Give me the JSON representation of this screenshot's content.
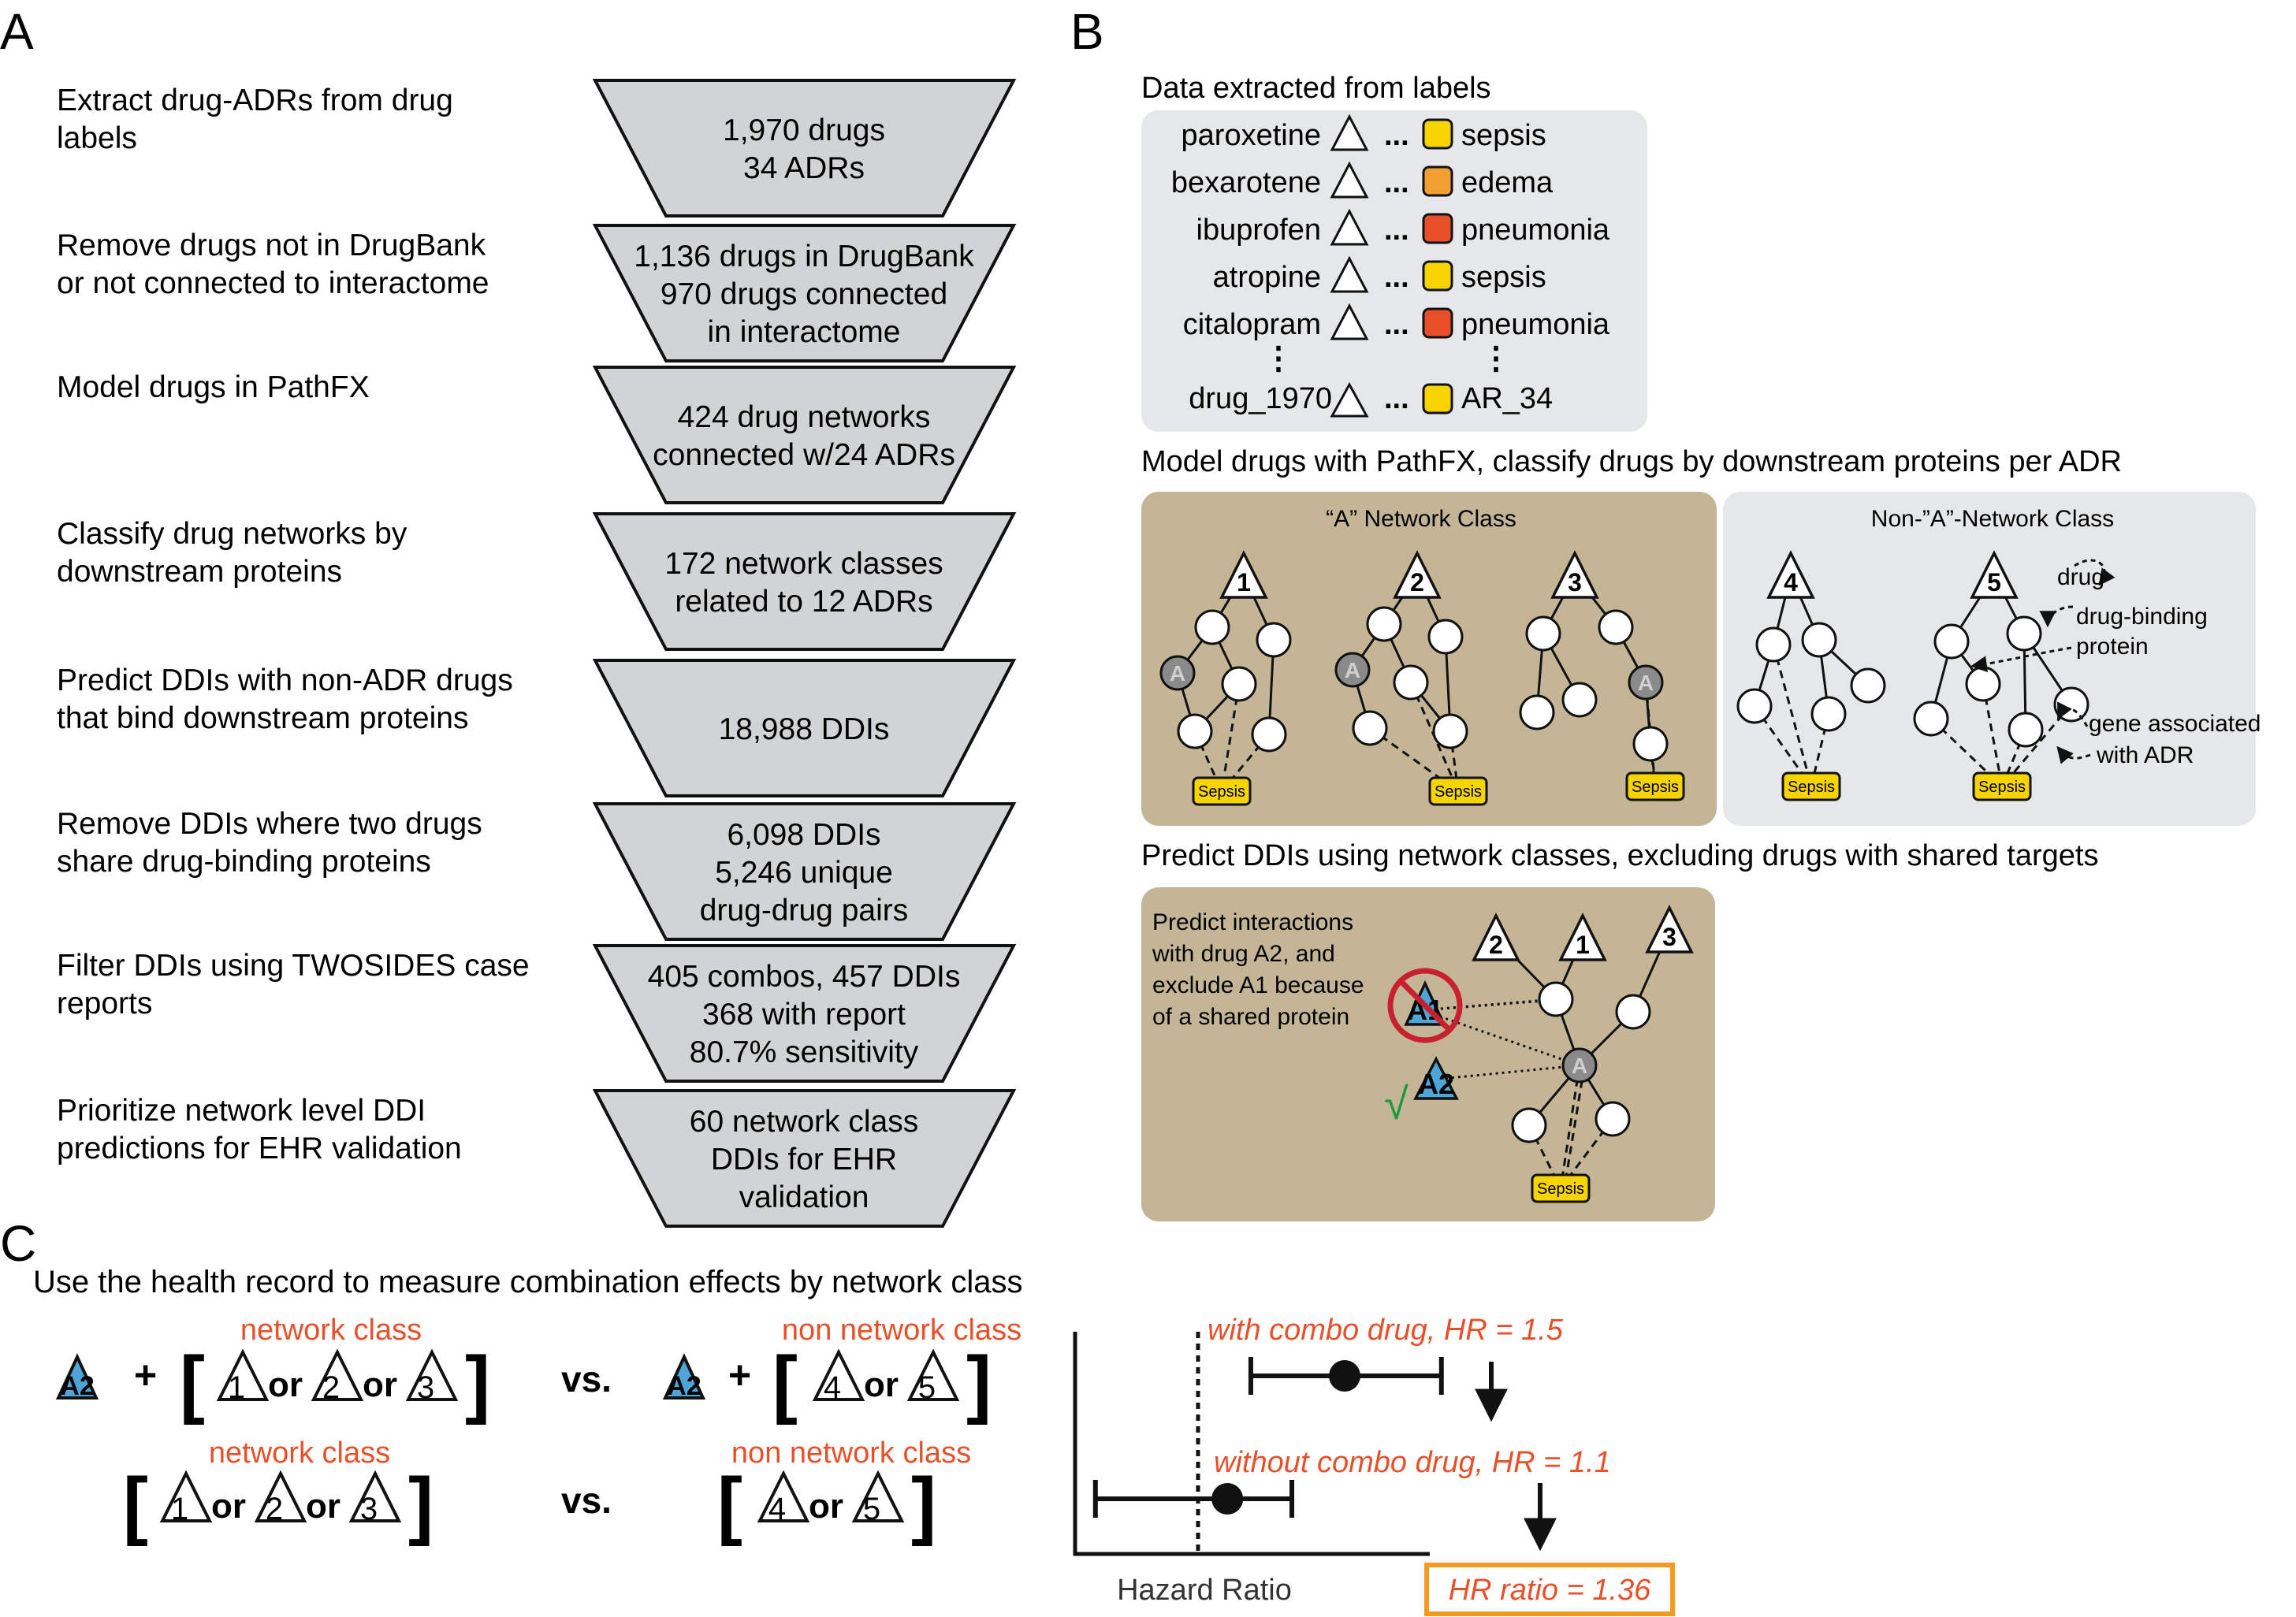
{
  "panels": {
    "a": "A",
    "b": "B",
    "c": "C"
  },
  "panel_a": {
    "steps": [
      {
        "desc": [
          "Extract drug-ADRs from drug",
          "labels"
        ],
        "funnel": [
          "1,970 drugs",
          "34 ADRs"
        ]
      },
      {
        "desc": [
          "Remove drugs not in DrugBank",
          "or not connected to interactome"
        ],
        "funnel": [
          "1,136 drugs in DrugBank",
          "970 drugs connected",
          "in interactome"
        ]
      },
      {
        "desc": [
          "Model drugs in PathFX"
        ],
        "funnel": [
          "424 drug networks",
          "connected w/24 ADRs"
        ]
      },
      {
        "desc": [
          "Classify drug networks by",
          "downstream proteins"
        ],
        "funnel": [
          "172 network classes",
          "related to 12 ADRs"
        ]
      },
      {
        "desc": [
          "Predict DDIs with non-ADR drugs",
          "that bind downstream proteins"
        ],
        "funnel": [
          "18,988 DDIs"
        ]
      },
      {
        "desc": [
          "Remove DDIs where two drugs",
          "share drug-binding proteins"
        ],
        "funnel": [
          "6,098 DDIs",
          "5,246 unique",
          "drug-drug pairs"
        ]
      },
      {
        "desc": [
          "Filter DDIs using TWOSIDES case",
          "reports"
        ],
        "funnel": [
          "405 combos, 457 DDIs",
          "368 with report",
          "80.7% sensitivity"
        ]
      },
      {
        "desc": [
          "Prioritize network level DDI",
          "predictions for EHR validation"
        ],
        "funnel": [
          "60 network class",
          "DDIs for EHR",
          "validation"
        ]
      }
    ]
  },
  "panel_b": {
    "title1": "Data extracted from labels",
    "labels": [
      {
        "drug": "paroxetine",
        "adr": "sepsis",
        "color": "#f5d400"
      },
      {
        "drug": "bexarotene",
        "adr": "edema",
        "color": "#f0a030"
      },
      {
        "drug": "ibuprofen",
        "adr": "pneumonia",
        "color": "#e8502a"
      },
      {
        "drug": "atropine",
        "adr": "sepsis",
        "color": "#f5d400"
      },
      {
        "drug": "citalopram",
        "adr": "pneumonia",
        "color": "#e8502a"
      }
    ],
    "dots": "...",
    "vdots": "⋮",
    "last_drug": "drug_1970",
    "last_adr": "AR_34",
    "title2": "Model drugs with PathFX, classify drugs by downstream proteins per ADR",
    "a_class_title": "“A” Network Class",
    "non_a_class_title": "Non-”A”-Network Class",
    "node_a": "A",
    "nets": [
      "1",
      "2",
      "3",
      "4",
      "5"
    ],
    "sepsis": "Sepsis",
    "legend": {
      "drug": "drug",
      "dbp1": "drug-binding",
      "dbp2": "protein",
      "gene1": "gene associated",
      "gene2": "with ADR"
    },
    "title3": "Predict DDIs using network classes, excluding drugs with shared targets",
    "predict_lines": [
      "Predict interactions",
      "with drug A2, and",
      "exclude A1 because",
      "of a shared protein"
    ],
    "a1": "A1",
    "a2": "A2",
    "check": "√",
    "colors": {
      "tan": "#c4b596",
      "gray": "#e6e7e8",
      "blue": "#4ea6d8",
      "yellow": "#f5d400",
      "orange": "#e8502a",
      "red": "#c8202e",
      "green": "#1a9a3a",
      "hr_box": "#f39a1e"
    }
  },
  "panel_c": {
    "title": "Use the health record to measure combination effects by network class",
    "network_class": "network class",
    "non_network_class": "non network class",
    "plus": "+",
    "or": "or",
    "vs": "vs.",
    "lb": "[",
    "rb": "]",
    "a2": "A2",
    "with_combo": "with combo drug, HR = 1.5",
    "without_combo": "without combo drug, HR = 1.1",
    "hazard_ratio": "Hazard Ratio",
    "hr_ratio": "HR ratio = 1.36",
    "chart_data": {
      "type": "scatter",
      "series": [
        {
          "name": "with combo drug, HR = 1.5",
          "hr": 1.5
        },
        {
          "name": "without combo drug, HR = 1.1",
          "hr": 1.1
        }
      ],
      "reference_line": 1.0,
      "xlabel": "Hazard Ratio"
    }
  }
}
